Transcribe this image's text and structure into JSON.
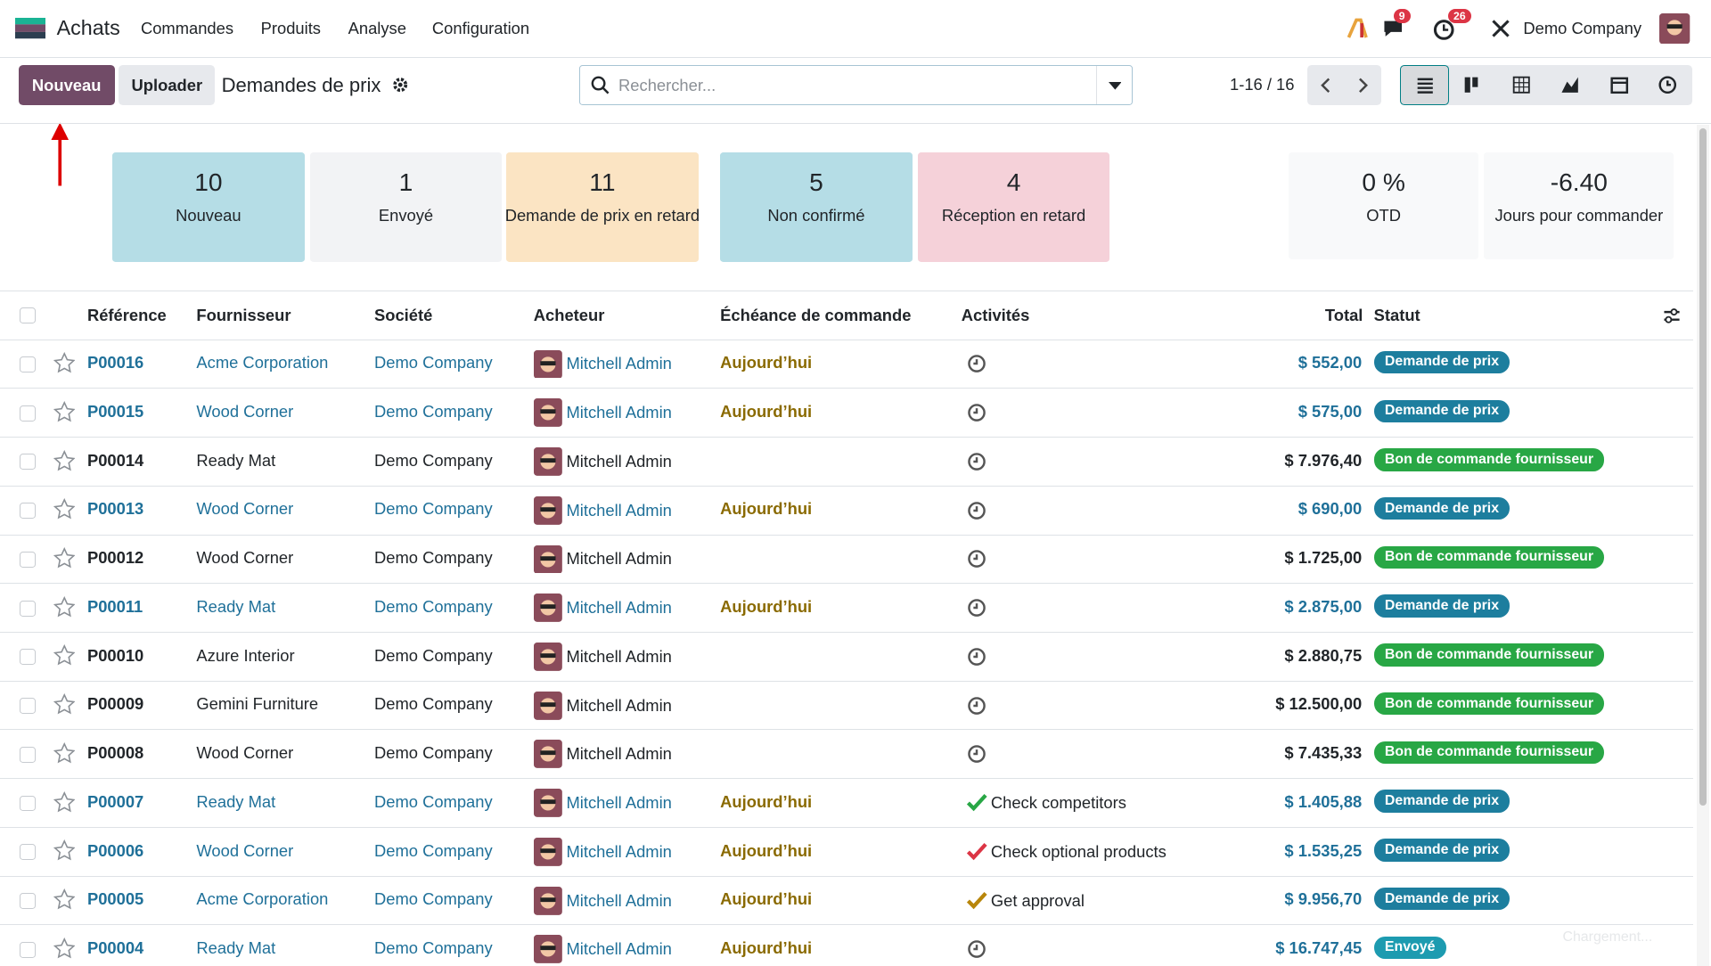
{
  "nav": {
    "app": "Achats",
    "menu": [
      "Commandes",
      "Produits",
      "Analyse",
      "Configuration"
    ],
    "messages_badge": "9",
    "activities_badge": "26",
    "company": "Demo Company"
  },
  "control": {
    "new_button": "Nouveau",
    "upload_button": "Uploader",
    "title": "Demandes de prix",
    "search_placeholder": "Rechercher...",
    "pager": "1-16 / 16"
  },
  "cards": [
    {
      "value": "10",
      "label": "Nouveau",
      "color": "#b5dde6"
    },
    {
      "value": "1",
      "label": "Envoyé",
      "color": "#f2f3f5"
    },
    {
      "value": "11",
      "label": "Demande de prix en retard",
      "color": "#fbe4c3"
    },
    {
      "value": "5",
      "label": "Non confirmé",
      "color": "#b5dde6"
    },
    {
      "value": "4",
      "label": "Réception en retard",
      "color": "#f5d1d9"
    }
  ],
  "stats": [
    {
      "value": "0 %",
      "label": "OTD"
    },
    {
      "value": "-6.40",
      "label": "Jours pour commander"
    }
  ],
  "table": {
    "columns": [
      "Référence",
      "Fournisseur",
      "Société",
      "Acheteur",
      "Échéance de commande",
      "Activités",
      "Total",
      "Statut"
    ],
    "rows": [
      {
        "ref": "P00016",
        "vendor": "Acme Corporation",
        "company": "Demo Company",
        "buyer": "Mitchell Admin",
        "deadline": "Aujourd’hui",
        "activity": null,
        "activity_color": "#555",
        "total": "$ 552,00",
        "status": "Demande de prix",
        "status_color": "#1d7e9e",
        "text_color": "#1f7099"
      },
      {
        "ref": "P00015",
        "vendor": "Wood Corner",
        "company": "Demo Company",
        "buyer": "Mitchell Admin",
        "deadline": "Aujourd’hui",
        "activity": null,
        "activity_color": "#555",
        "total": "$ 575,00",
        "status": "Demande de prix",
        "status_color": "#1d7e9e",
        "text_color": "#1f7099"
      },
      {
        "ref": "P00014",
        "vendor": "Ready Mat",
        "company": "Demo Company",
        "buyer": "Mitchell Admin",
        "deadline": null,
        "activity": null,
        "activity_color": "#555",
        "total": "$ 7.976,40",
        "status": "Bon de commande fournisseur",
        "status_color": "#28a745",
        "text_color": "#212529"
      },
      {
        "ref": "P00013",
        "vendor": "Wood Corner",
        "company": "Demo Company",
        "buyer": "Mitchell Admin",
        "deadline": "Aujourd’hui",
        "activity": null,
        "activity_color": "#555",
        "total": "$ 690,00",
        "status": "Demande de prix",
        "status_color": "#1d7e9e",
        "text_color": "#1f7099"
      },
      {
        "ref": "P00012",
        "vendor": "Wood Corner",
        "company": "Demo Company",
        "buyer": "Mitchell Admin",
        "deadline": null,
        "activity": null,
        "activity_color": "#555",
        "total": "$ 1.725,00",
        "status": "Bon de commande fournisseur",
        "status_color": "#28a745",
        "text_color": "#212529"
      },
      {
        "ref": "P00011",
        "vendor": "Ready Mat",
        "company": "Demo Company",
        "buyer": "Mitchell Admin",
        "deadline": "Aujourd’hui",
        "activity": null,
        "activity_color": "#555",
        "total": "$ 2.875,00",
        "status": "Demande de prix",
        "status_color": "#1d7e9e",
        "text_color": "#1f7099"
      },
      {
        "ref": "P00010",
        "vendor": "Azure Interior",
        "company": "Demo Company",
        "buyer": "Mitchell Admin",
        "deadline": null,
        "activity": null,
        "activity_color": "#555",
        "total": "$ 2.880,75",
        "status": "Bon de commande fournisseur",
        "status_color": "#28a745",
        "text_color": "#212529"
      },
      {
        "ref": "P00009",
        "vendor": "Gemini Furniture",
        "company": "Demo Company",
        "buyer": "Mitchell Admin",
        "deadline": null,
        "activity": null,
        "activity_color": "#555",
        "total": "$ 12.500,00",
        "status": "Bon de commande fournisseur",
        "status_color": "#28a745",
        "text_color": "#212529"
      },
      {
        "ref": "P00008",
        "vendor": "Wood Corner",
        "company": "Demo Company",
        "buyer": "Mitchell Admin",
        "deadline": null,
        "activity": null,
        "activity_color": "#555",
        "total": "$ 7.435,33",
        "status": "Bon de commande fournisseur",
        "status_color": "#28a745",
        "text_color": "#212529"
      },
      {
        "ref": "P00007",
        "vendor": "Ready Mat",
        "company": "Demo Company",
        "buyer": "Mitchell Admin",
        "deadline": "Aujourd’hui",
        "activity": "Check competitors",
        "activity_color": "#28a745",
        "total": "$ 1.405,88",
        "status": "Demande de prix",
        "status_color": "#1d7e9e",
        "text_color": "#1f7099"
      },
      {
        "ref": "P00006",
        "vendor": "Wood Corner",
        "company": "Demo Company",
        "buyer": "Mitchell Admin",
        "deadline": "Aujourd’hui",
        "activity": "Check optional products",
        "activity_color": "#dc3545",
        "total": "$ 1.535,25",
        "status": "Demande de prix",
        "status_color": "#1d7e9e",
        "text_color": "#1f7099"
      },
      {
        "ref": "P00005",
        "vendor": "Acme Corporation",
        "company": "Demo Company",
        "buyer": "Mitchell Admin",
        "deadline": "Aujourd’hui",
        "activity": "Get approval",
        "activity_color": "#b8860b",
        "total": "$ 9.956,70",
        "status": "Demande de prix",
        "status_color": "#1d7e9e",
        "text_color": "#1f7099"
      },
      {
        "ref": "P00004",
        "vendor": "Ready Mat",
        "company": "Demo Company",
        "buyer": "Mitchell Admin",
        "deadline": "Aujourd’hui",
        "activity": null,
        "activity_color": "#555",
        "total": "$ 16.747,45",
        "status": "Envoyé",
        "status_color": "#1d9bb0",
        "text_color": "#1f7099"
      }
    ]
  },
  "loading": "Chargement..."
}
